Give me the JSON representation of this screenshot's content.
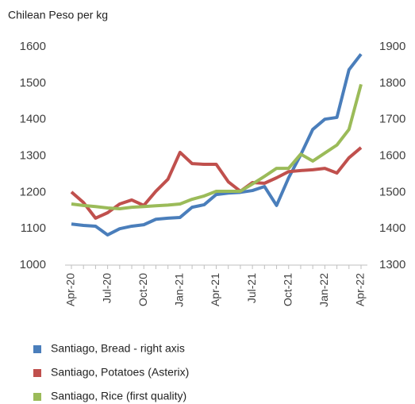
{
  "chart_data": {
    "type": "line",
    "title": "Chilean Peso per kg",
    "categories": [
      "Apr-20",
      null,
      null,
      "Jul-20",
      null,
      null,
      "Oct-20",
      null,
      null,
      "Jan-21",
      null,
      null,
      "Apr-21",
      null,
      null,
      "Jul-21",
      null,
      null,
      "Oct-21",
      null,
      null,
      "Jan-22",
      null,
      null,
      "Apr-22"
    ],
    "ylim": [
      1000,
      1600
    ],
    "yticks": [
      1000,
      1100,
      1200,
      1300,
      1400,
      1500,
      1600
    ],
    "y2lim": [
      1300,
      1900
    ],
    "y2ticks": [
      1300,
      1400,
      1500,
      1600,
      1700,
      1800,
      1900
    ],
    "grid": false,
    "legend": "bottom",
    "series": [
      {
        "name": "Santiago, Bread - right axis",
        "color": "#4a7ebb",
        "axis": "y2",
        "values": [
          1413,
          1409,
          1407,
          1383,
          1400,
          1407,
          1411,
          1426,
          1429,
          1431,
          1459,
          1466,
          1494,
          1498,
          1500,
          1505,
          1516,
          1464,
          1540,
          1603,
          1673,
          1701,
          1706,
          1837,
          1880
        ]
      },
      {
        "name": "Santiago, Potatoes (Asterix)",
        "color": "#c0504d",
        "values": [
          1201,
          1172,
          1129,
          1144,
          1168,
          1179,
          1164,
          1203,
          1236,
          1310,
          1279,
          1277,
          1277,
          1229,
          1203,
          1227,
          1225,
          1240,
          1257,
          1260,
          1262,
          1266,
          1253,
          1295,
          1323
        ]
      },
      {
        "name": "Santiago, Rice (first quality)",
        "color": "#9bbb59",
        "values": [
          1168,
          1164,
          1161,
          1157,
          1155,
          1159,
          1161,
          1163,
          1165,
          1168,
          1181,
          1190,
          1203,
          1203,
          1203,
          1223,
          1244,
          1266,
          1266,
          1305,
          1286,
          1308,
          1330,
          1373,
          1497
        ]
      }
    ]
  }
}
